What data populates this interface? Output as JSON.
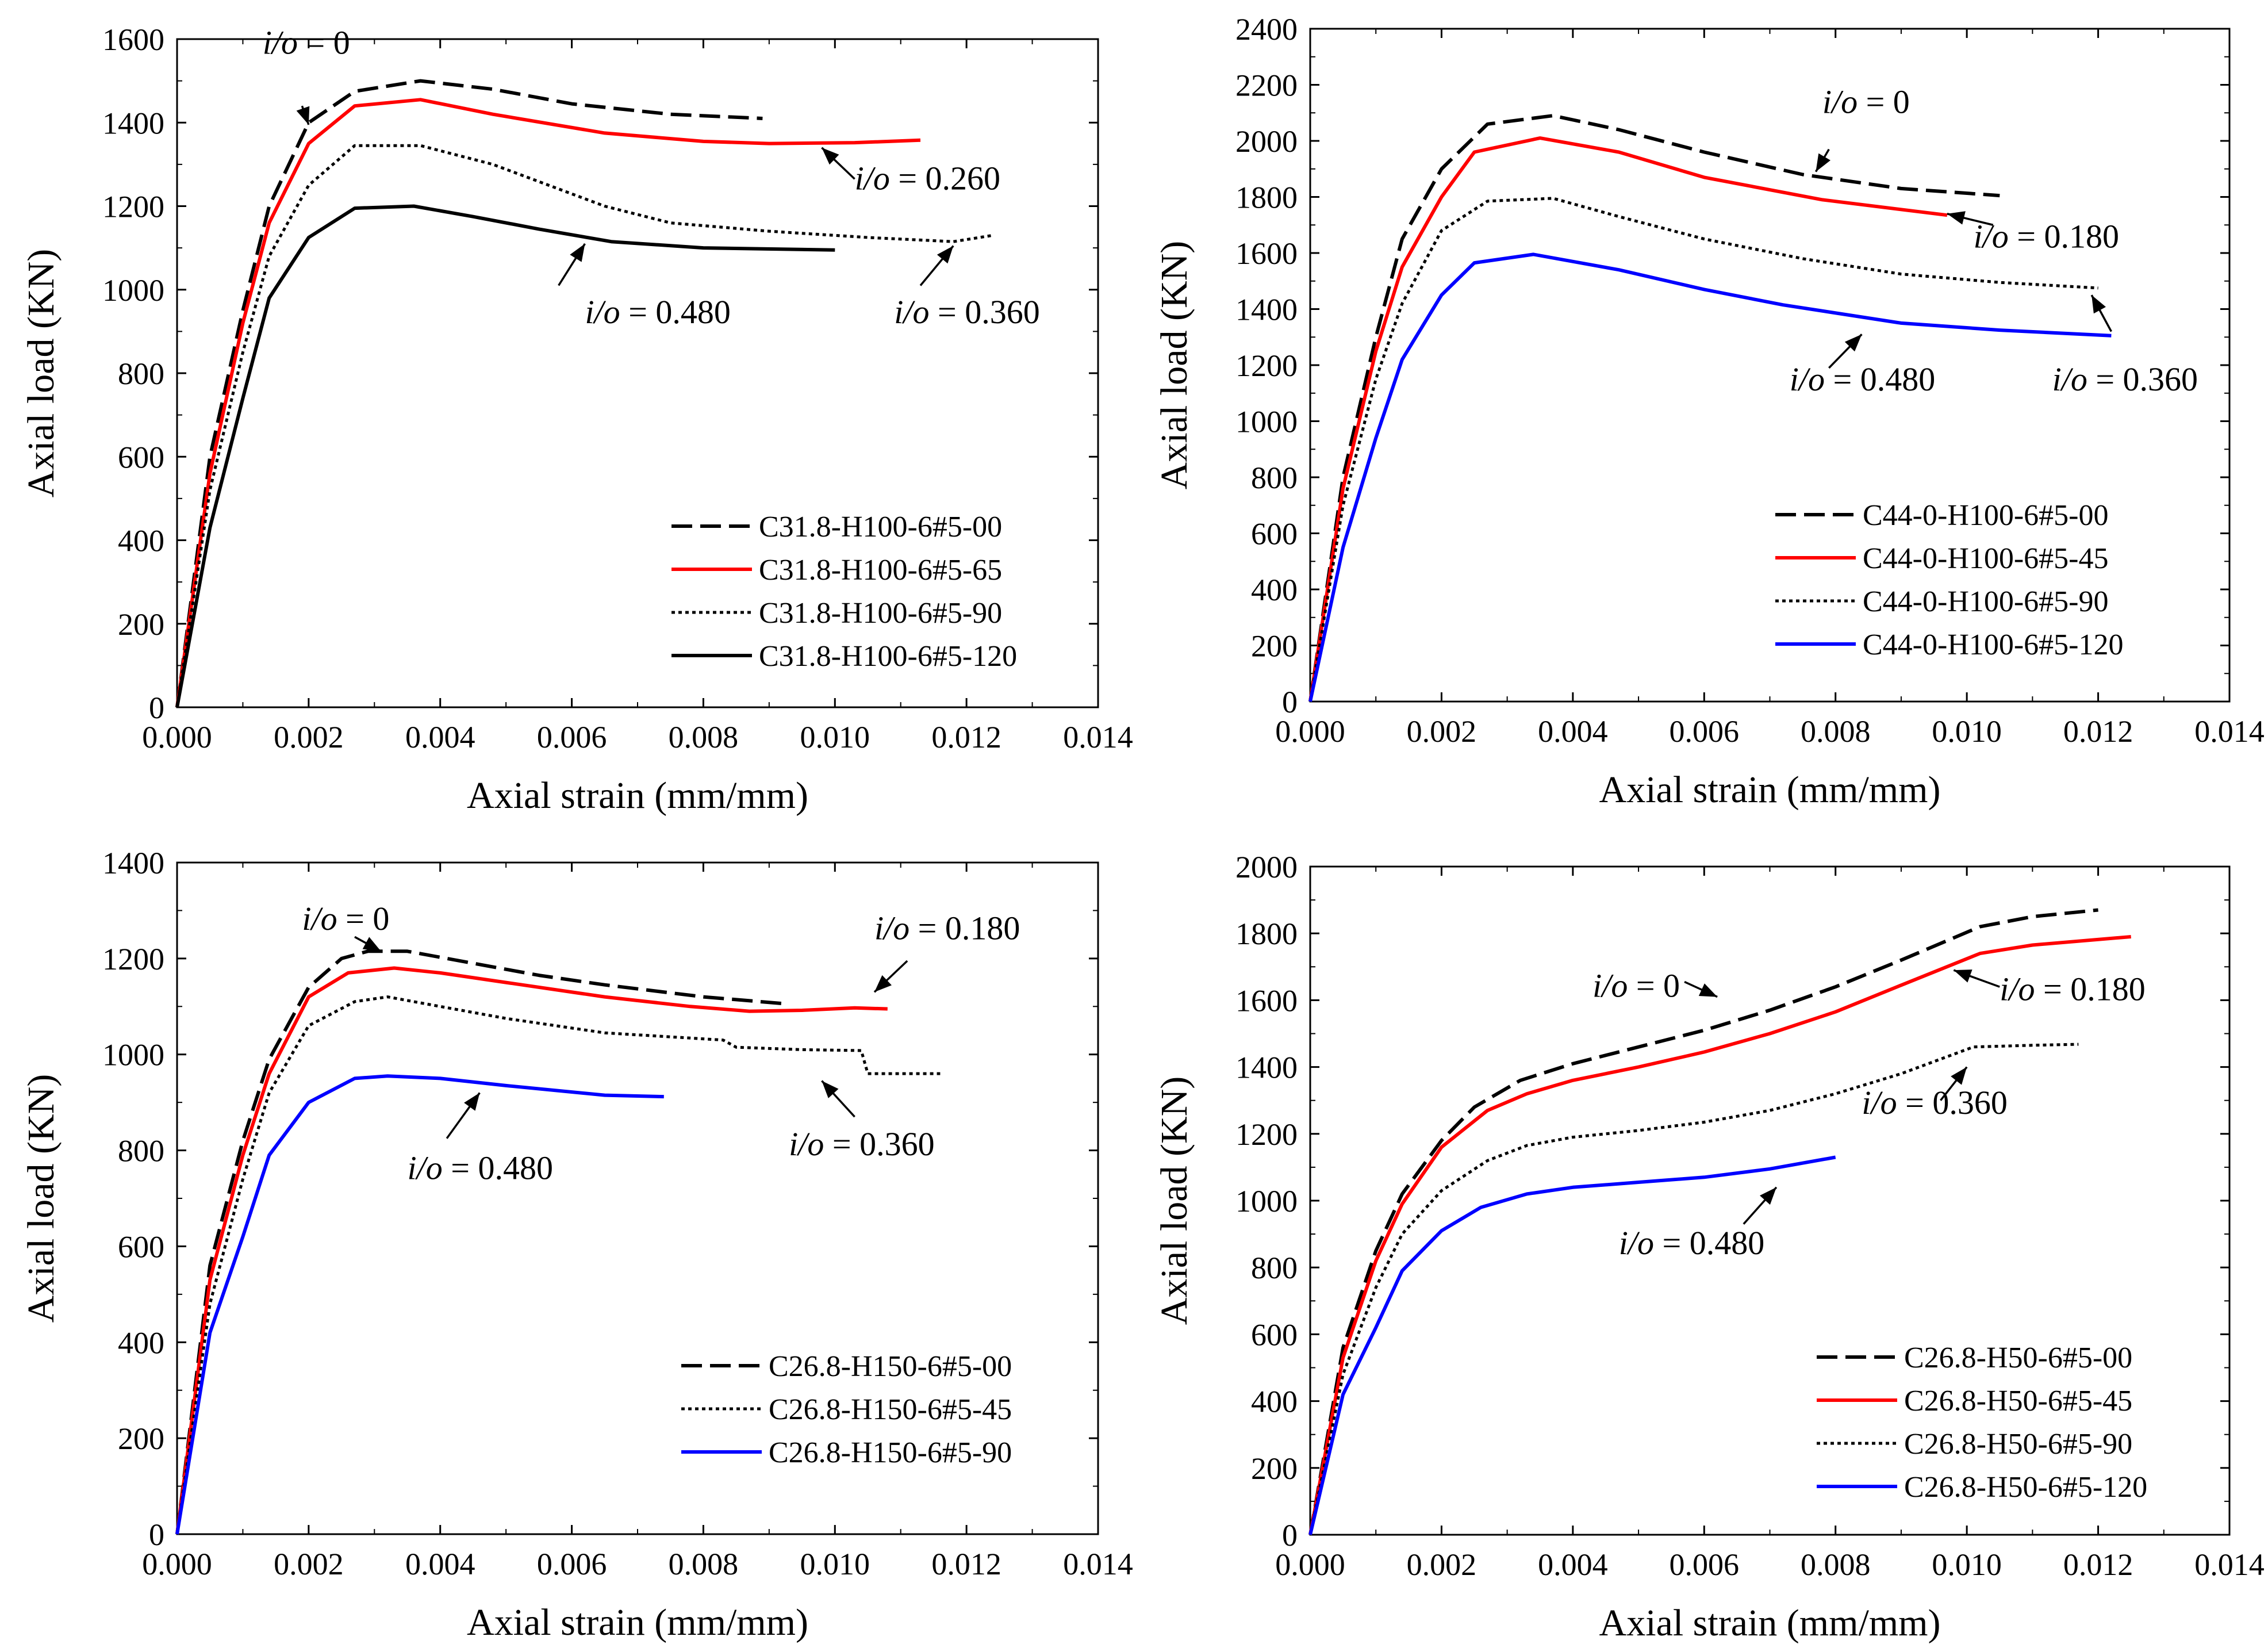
{
  "figure": {
    "description_hidden": false
  },
  "chart_data": [
    {
      "type": "line",
      "id": "top-left",
      "xlabel": "Axial strain (mm/mm)",
      "ylabel": "Axial load (KN)",
      "xlim": [
        0,
        0.014
      ],
      "ylim": [
        0,
        1600
      ],
      "xticks": [
        "0.000",
        "0.002",
        "0.004",
        "0.006",
        "0.008",
        "0.010",
        "0.012",
        "0.014"
      ],
      "yticks": [
        "0",
        "200",
        "400",
        "600",
        "800",
        "1000",
        "1200",
        "1400",
        "1600"
      ],
      "legend_position": "bottom-right",
      "series": [
        {
          "name": "C31.8-H100-6#5-00",
          "color": "#000000",
          "style": "dashed",
          "x": [
            0,
            0.0005,
            0.001,
            0.0014,
            0.002,
            0.0027,
            0.0037,
            0.0048,
            0.006,
            0.0075,
            0.0089
          ],
          "y": [
            0,
            600,
            950,
            1200,
            1400,
            1475,
            1500,
            1480,
            1445,
            1420,
            1410
          ]
        },
        {
          "name": "C31.8-H100-6#5-65",
          "color": "#ff0000",
          "style": "solid",
          "x": [
            0,
            0.0005,
            0.001,
            0.0014,
            0.002,
            0.0027,
            0.0037,
            0.0048,
            0.0065,
            0.008,
            0.009,
            0.0103,
            0.0113
          ],
          "y": [
            0,
            560,
            920,
            1160,
            1350,
            1440,
            1455,
            1420,
            1375,
            1355,
            1350,
            1352,
            1358
          ]
        },
        {
          "name": "C31.8-H100-6#5-90",
          "color": "#000000",
          "style": "dotted",
          "x": [
            0,
            0.0005,
            0.001,
            0.0014,
            0.002,
            0.0027,
            0.0037,
            0.0048,
            0.0065,
            0.0075,
            0.009,
            0.0105,
            0.0118,
            0.0124
          ],
          "y": [
            0,
            520,
            850,
            1080,
            1250,
            1345,
            1345,
            1300,
            1200,
            1160,
            1140,
            1125,
            1115,
            1130
          ]
        },
        {
          "name": "C31.8-H100-6#5-120",
          "color": "#000000",
          "style": "solid",
          "x": [
            0,
            0.0005,
            0.001,
            0.0014,
            0.002,
            0.0027,
            0.0036,
            0.0045,
            0.0055,
            0.0066,
            0.008,
            0.01
          ],
          "y": [
            0,
            430,
            740,
            980,
            1125,
            1195,
            1200,
            1175,
            1145,
            1115,
            1100,
            1095
          ]
        }
      ],
      "annotations": [
        {
          "text": "i/o = 0",
          "x": 0.0013,
          "y": 1565,
          "arrow_from": [
            0.0019,
            1440
          ],
          "arrow_to": [
            0.002,
            1395
          ]
        },
        {
          "text": "i/o = 0.260",
          "x": 0.0103,
          "y": 1240,
          "arrow_from": [
            0.0103,
            1265
          ],
          "arrow_to": [
            0.0098,
            1340
          ]
        },
        {
          "text": "i/o = 0.480",
          "x": 0.0062,
          "y": 920,
          "arrow_from": [
            0.0058,
            1010
          ],
          "arrow_to": [
            0.0062,
            1110
          ]
        },
        {
          "text": "i/o = 0.360",
          "x": 0.0109,
          "y": 920,
          "arrow_from": [
            0.0113,
            1010
          ],
          "arrow_to": [
            0.0118,
            1105
          ]
        }
      ]
    },
    {
      "type": "line",
      "id": "top-right",
      "xlabel": "Axial strain (mm/mm)",
      "ylabel": "Axial load (KN)",
      "xlim": [
        0,
        0.014
      ],
      "ylim": [
        0,
        2400
      ],
      "xticks": [
        "0.000",
        "0.002",
        "0.004",
        "0.006",
        "0.008",
        "0.010",
        "0.012",
        "0.014"
      ],
      "yticks": [
        "0",
        "200",
        "400",
        "600",
        "800",
        "1000",
        "1200",
        "1400",
        "1600",
        "1800",
        "2000",
        "2200",
        "2400"
      ],
      "legend_position": "bottom-right",
      "series": [
        {
          "name": "C44-0-H100-6#5-00",
          "color": "#000000",
          "style": "dashed",
          "x": [
            0,
            0.0005,
            0.001,
            0.0014,
            0.002,
            0.0027,
            0.0037,
            0.0047,
            0.006,
            0.0075,
            0.009,
            0.0105
          ],
          "y": [
            0,
            800,
            1300,
            1650,
            1900,
            2060,
            2090,
            2040,
            1960,
            1880,
            1830,
            1805
          ]
        },
        {
          "name": "C44-0-H100-6#5-45",
          "color": "#ff0000",
          "style": "solid",
          "x": [
            0,
            0.0005,
            0.001,
            0.0014,
            0.002,
            0.0025,
            0.0035,
            0.0047,
            0.006,
            0.0078,
            0.0097
          ],
          "y": [
            0,
            760,
            1250,
            1550,
            1800,
            1960,
            2010,
            1960,
            1870,
            1790,
            1735
          ]
        },
        {
          "name": "C44-0-H100-6#5-90",
          "color": "#000000",
          "style": "dotted",
          "x": [
            0,
            0.0005,
            0.001,
            0.0014,
            0.002,
            0.0027,
            0.0037,
            0.0047,
            0.006,
            0.0075,
            0.009,
            0.0105,
            0.012
          ],
          "y": [
            0,
            700,
            1150,
            1420,
            1680,
            1785,
            1795,
            1730,
            1650,
            1580,
            1525,
            1495,
            1475
          ]
        },
        {
          "name": "C44-0-H100-6#5-120",
          "color": "#0000ff",
          "style": "solid",
          "x": [
            0,
            0.0005,
            0.001,
            0.0014,
            0.002,
            0.0025,
            0.0034,
            0.0047,
            0.006,
            0.0072,
            0.009,
            0.0105,
            0.0122
          ],
          "y": [
            0,
            550,
            940,
            1220,
            1450,
            1565,
            1595,
            1540,
            1470,
            1415,
            1350,
            1325,
            1305
          ]
        }
      ],
      "annotations": [
        {
          "text": "i/o = 0",
          "x": 0.0078,
          "y": 2100,
          "arrow_from": [
            0.0079,
            1970
          ],
          "arrow_to": [
            0.0077,
            1890
          ]
        },
        {
          "text": "i/o = 0.180",
          "x": 0.0101,
          "y": 1620,
          "arrow_from": [
            0.0104,
            1700
          ],
          "arrow_to": [
            0.0097,
            1740
          ]
        },
        {
          "text": "i/o = 0.480",
          "x": 0.0073,
          "y": 1110,
          "arrow_from": [
            0.0079,
            1190
          ],
          "arrow_to": [
            0.0084,
            1310
          ]
        },
        {
          "text": "i/o = 0.360",
          "x": 0.0113,
          "y": 1110,
          "arrow_from": [
            0.0122,
            1320
          ],
          "arrow_to": [
            0.0119,
            1450
          ]
        }
      ]
    },
    {
      "type": "line",
      "id": "bottom-left",
      "xlabel": "Axial strain (mm/mm)",
      "ylabel": "Axial load (KN)",
      "xlim": [
        0,
        0.014
      ],
      "ylim": [
        0,
        1400
      ],
      "xticks": [
        "0.000",
        "0.002",
        "0.004",
        "0.006",
        "0.008",
        "0.010",
        "0.012",
        "0.014"
      ],
      "yticks": [
        "0",
        "200",
        "400",
        "600",
        "800",
        "1000",
        "1200",
        "1400"
      ],
      "legend_position": "bottom-right",
      "series": [
        {
          "name": "C26.8-H150-6#5-00",
          "color": "#000000",
          "style": "dashed",
          "x": [
            0,
            0.0005,
            0.001,
            0.0014,
            0.002,
            0.0025,
            0.0029,
            0.0035,
            0.0045,
            0.0055,
            0.0065,
            0.008,
            0.0093
          ],
          "y": [
            0,
            560,
            820,
            990,
            1140,
            1200,
            1215,
            1215,
            1190,
            1165,
            1145,
            1120,
            1105
          ]
        },
        {
          "name": "",
          "color": "#ff0000",
          "style": "solid",
          "x": [
            0,
            0.0005,
            0.001,
            0.0014,
            0.002,
            0.0026,
            0.0033,
            0.004,
            0.005,
            0.0065,
            0.0078,
            0.0087,
            0.0095,
            0.0103,
            0.0108
          ],
          "y": [
            0,
            530,
            790,
            960,
            1120,
            1170,
            1180,
            1170,
            1150,
            1120,
            1100,
            1090,
            1092,
            1097,
            1095
          ]
        },
        {
          "name": "C26.8-H150-6#5-45",
          "color": "#000000",
          "style": "dotted",
          "x": [
            0,
            0.0005,
            0.001,
            0.0014,
            0.002,
            0.0027,
            0.0032,
            0.004,
            0.005,
            0.0065,
            0.0083,
            0.0085,
            0.0095,
            0.0104,
            0.0105,
            0.0116
          ],
          "y": [
            0,
            480,
            740,
            920,
            1060,
            1110,
            1120,
            1100,
            1075,
            1045,
            1030,
            1015,
            1010,
            1008,
            960,
            960
          ]
        },
        {
          "name": "C26.8-H150-6#5-90",
          "color": "#0000ff",
          "style": "solid",
          "x": [
            0,
            0.0005,
            0.001,
            0.0014,
            0.002,
            0.0027,
            0.0032,
            0.004,
            0.005,
            0.0065,
            0.0074
          ],
          "y": [
            0,
            420,
            620,
            790,
            900,
            950,
            955,
            950,
            935,
            915,
            912
          ]
        }
      ],
      "annotations": [
        {
          "text": "i/o = 0",
          "x": 0.0019,
          "y": 1260,
          "arrow_from": [
            0.0027,
            1245
          ],
          "arrow_to": [
            0.0031,
            1215
          ]
        },
        {
          "text": "i/o = 0.180",
          "x": 0.0106,
          "y": 1240,
          "arrow_from": [
            0.0111,
            1195
          ],
          "arrow_to": [
            0.0106,
            1130
          ]
        },
        {
          "text": "i/o = 0.480",
          "x": 0.0035,
          "y": 740,
          "arrow_from": [
            0.0041,
            825
          ],
          "arrow_to": [
            0.0046,
            920
          ]
        },
        {
          "text": "i/o = 0.360",
          "x": 0.0093,
          "y": 790,
          "arrow_from": [
            0.0103,
            870
          ],
          "arrow_to": [
            0.0098,
            945
          ]
        }
      ]
    },
    {
      "type": "line",
      "id": "bottom-right",
      "xlabel": "Axial strain (mm/mm)",
      "ylabel": "Axial load (KN)",
      "xlim": [
        0,
        0.014
      ],
      "ylim": [
        0,
        2000
      ],
      "xticks": [
        "0.000",
        "0.002",
        "0.004",
        "0.006",
        "0.008",
        "0.010",
        "0.012",
        "0.014"
      ],
      "yticks": [
        "0",
        "200",
        "400",
        "600",
        "800",
        "1000",
        "1200",
        "1400",
        "1600",
        "1800",
        "2000"
      ],
      "legend_position": "bottom-right",
      "series": [
        {
          "name": "C26.8-H50-6#5-00",
          "color": "#000000",
          "style": "dashed",
          "x": [
            0,
            0.0005,
            0.001,
            0.0014,
            0.002,
            0.0025,
            0.0032,
            0.004,
            0.005,
            0.006,
            0.007,
            0.008,
            0.009,
            0.0102,
            0.011,
            0.012
          ],
          "y": [
            0,
            560,
            850,
            1020,
            1180,
            1280,
            1360,
            1410,
            1460,
            1510,
            1570,
            1640,
            1720,
            1820,
            1850,
            1870
          ]
        },
        {
          "name": "C26.8-H50-6#5-45",
          "color": "#ff0000",
          "style": "solid",
          "x": [
            0,
            0.0005,
            0.001,
            0.0014,
            0.002,
            0.0027,
            0.0033,
            0.004,
            0.005,
            0.006,
            0.007,
            0.008,
            0.009,
            0.0102,
            0.011,
            0.0125
          ],
          "y": [
            0,
            530,
            820,
            990,
            1160,
            1270,
            1320,
            1360,
            1400,
            1445,
            1500,
            1565,
            1645,
            1740,
            1765,
            1790
          ]
        },
        {
          "name": "C26.8-H50-6#5-90",
          "color": "#000000",
          "style": "dotted",
          "x": [
            0,
            0.0005,
            0.001,
            0.0014,
            0.002,
            0.0027,
            0.0033,
            0.004,
            0.005,
            0.006,
            0.007,
            0.008,
            0.009,
            0.0101,
            0.011,
            0.0117
          ],
          "y": [
            0,
            480,
            740,
            900,
            1030,
            1120,
            1165,
            1190,
            1210,
            1235,
            1270,
            1320,
            1380,
            1460,
            1465,
            1468
          ]
        },
        {
          "name": "C26.8-H50-6#5-120",
          "color": "#0000ff",
          "style": "solid",
          "x": [
            0,
            0.0005,
            0.001,
            0.0014,
            0.002,
            0.0026,
            0.0033,
            0.004,
            0.005,
            0.006,
            0.007,
            0.008
          ],
          "y": [
            0,
            420,
            620,
            790,
            910,
            980,
            1020,
            1040,
            1055,
            1070,
            1095,
            1130
          ]
        }
      ],
      "annotations": [
        {
          "text": "i/o = 0",
          "x": 0.0043,
          "y": 1610,
          "arrow_from": [
            0.0057,
            1655
          ],
          "arrow_to": [
            0.0062,
            1610
          ]
        },
        {
          "text": "i/o = 0.180",
          "x": 0.0105,
          "y": 1600,
          "arrow_from": [
            0.0105,
            1640
          ],
          "arrow_to": [
            0.0098,
            1690
          ]
        },
        {
          "text": "i/o = 0.360",
          "x": 0.0084,
          "y": 1260,
          "arrow_from": [
            0.0096,
            1300
          ],
          "arrow_to": [
            0.01,
            1400
          ]
        },
        {
          "text": "i/o = 0.480",
          "x": 0.0047,
          "y": 840,
          "arrow_from": [
            0.0066,
            930
          ],
          "arrow_to": [
            0.0071,
            1040
          ]
        }
      ]
    }
  ]
}
